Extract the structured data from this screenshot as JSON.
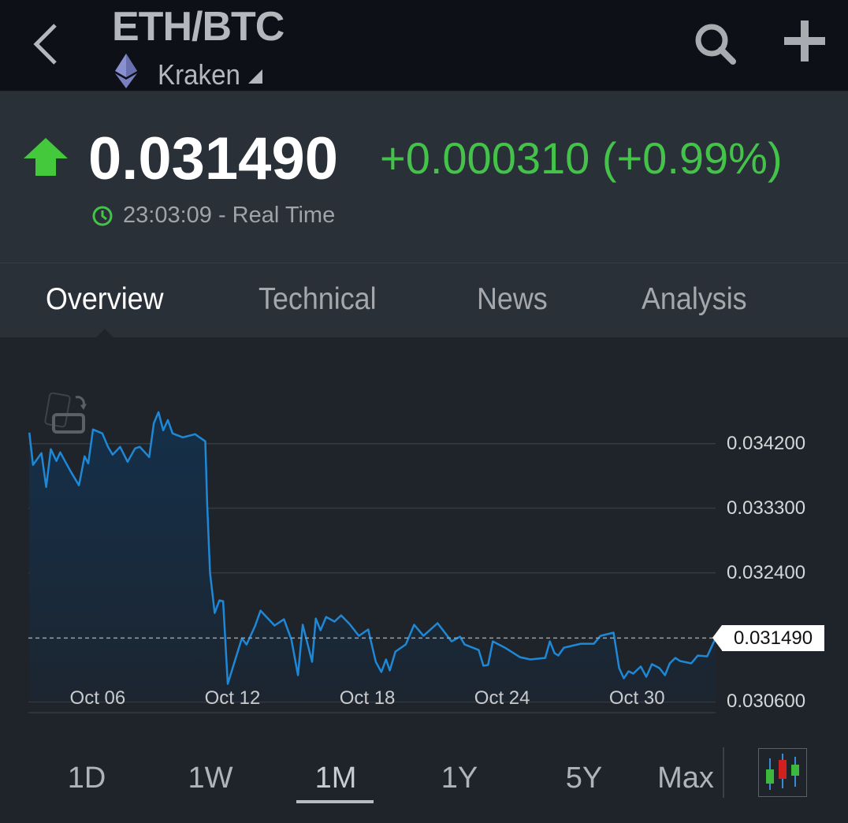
{
  "header": {
    "title": "ETH/BTC",
    "exchange": "Kraken",
    "icons": [
      "back-chevron-icon",
      "ethereum-icon",
      "dropdown-triangle-icon",
      "search-icon",
      "plus-icon"
    ]
  },
  "quote": {
    "price": "0.031490",
    "change": "+0.000310 (+0.99%)",
    "time": "23:03:09 - Real Time",
    "direction": "up",
    "up_color": "#44c24a"
  },
  "tabs": [
    {
      "label": "Overview",
      "active": true
    },
    {
      "label": "Technical"
    },
    {
      "label": "News"
    },
    {
      "label": "Analysis"
    }
  ],
  "ranges": [
    {
      "label": "1D"
    },
    {
      "label": "1W"
    },
    {
      "label": "1M",
      "active": true
    },
    {
      "label": "1Y"
    },
    {
      "label": "5Y"
    },
    {
      "label": "Max"
    }
  ],
  "chart_data": {
    "type": "area",
    "line_color": "#1e88d6",
    "grid": true,
    "current_value_label": "0.031490",
    "current_value": 0.03149,
    "xlim": [
      "Oct 02 22:00",
      "Nov 02 12:00"
    ],
    "ylim": [
      0.03045,
      0.035
    ],
    "x_ticks": [
      "Oct 06",
      "Oct 12",
      "Oct 18",
      "Oct 24",
      "Oct 30"
    ],
    "y_ticks": [
      {
        "label": "0.034200",
        "value": 0.0342
      },
      {
        "label": "0.033300",
        "value": 0.0333
      },
      {
        "label": "0.032400",
        "value": 0.0324
      },
      {
        "label": "0.030600",
        "value": 0.0306
      }
    ],
    "points": [
      [
        "Oct 02 23:00",
        0.034354
      ],
      [
        "Oct 03 03:00",
        0.033904
      ],
      [
        "Oct 03 12:00",
        0.034068
      ],
      [
        "Oct 03 17:00",
        0.033596
      ],
      [
        "Oct 03 22:00",
        0.034123
      ],
      [
        "Oct 04 04:00",
        0.033958
      ],
      [
        "Oct 04 08:00",
        0.034079
      ],
      [
        "Oct 04 19:00",
        0.033816
      ],
      [
        "Oct 05 04:00",
        0.033618
      ],
      [
        "Oct 05 10:00",
        0.034024
      ],
      [
        "Oct 05 14:00",
        0.033925
      ],
      [
        "Oct 05 19:00",
        0.034398
      ],
      [
        "Oct 06 05:00",
        0.034343
      ],
      [
        "Oct 06 11:00",
        0.034156
      ],
      [
        "Oct 06 16:00",
        0.034046
      ],
      [
        "Oct 07 00:00",
        0.034156
      ],
      [
        "Oct 07 08:00",
        0.033947
      ],
      [
        "Oct 07 16:00",
        0.034134
      ],
      [
        "Oct 07 21:00",
        0.034156
      ],
      [
        "Oct 08 07:00",
        0.034013
      ],
      [
        "Oct 08 12:00",
        0.034485
      ],
      [
        "Oct 08 17:00",
        0.034639
      ],
      [
        "Oct 08 22:00",
        0.034387
      ],
      [
        "Oct 09 03:00",
        0.034529
      ],
      [
        "Oct 09 08:00",
        0.034343
      ],
      [
        "Oct 09 19:00",
        0.034288
      ],
      [
        "Oct 10 08:00",
        0.034332
      ],
      [
        "Oct 10 19:00",
        0.034233
      ],
      [
        "Oct 10 21:00",
        0.033355
      ],
      [
        "Oct 11 00:00",
        0.0324
      ],
      [
        "Oct 11 05:00",
        0.031839
      ],
      [
        "Oct 11 10:00",
        0.032015
      ],
      [
        "Oct 11 14:00",
        0.032004
      ],
      [
        "Oct 11 19:00",
        0.030851
      ],
      [
        "Oct 12 10:00",
        0.031488
      ],
      [
        "Oct 12 15:00",
        0.0314
      ],
      [
        "Oct 13 00:00",
        0.031653
      ],
      [
        "Oct 13 06:00",
        0.031872
      ],
      [
        "Oct 13 21:00",
        0.031664
      ],
      [
        "Oct 14 07:00",
        0.031751
      ],
      [
        "Oct 14 15:00",
        0.031466
      ],
      [
        "Oct 14 22:00",
        0.030972
      ],
      [
        "Oct 15 03:00",
        0.031675
      ],
      [
        "Oct 15 13:00",
        0.031159
      ],
      [
        "Oct 15 17:00",
        0.031762
      ],
      [
        "Oct 15 22:00",
        0.031598
      ],
      [
        "Oct 16 04:00",
        0.031784
      ],
      [
        "Oct 16 13:00",
        0.031719
      ],
      [
        "Oct 16 20:00",
        0.031806
      ],
      [
        "Oct 17 05:00",
        0.031686
      ],
      [
        "Oct 17 15:00",
        0.031521
      ],
      [
        "Oct 18 01:00",
        0.031609
      ],
      [
        "Oct 18 09:00",
        0.031159
      ],
      [
        "Oct 18 15:00",
        0.031016
      ],
      [
        "Oct 18 20:00",
        0.031192
      ],
      [
        "Oct 19 00:00",
        0.031038
      ],
      [
        "Oct 19 06:00",
        0.031301
      ],
      [
        "Oct 19 17:00",
        0.0314
      ],
      [
        "Oct 20 02:00",
        0.031675
      ],
      [
        "Oct 20 12:00",
        0.031521
      ],
      [
        "Oct 21 03:00",
        0.031697
      ],
      [
        "Oct 21 18:00",
        0.031444
      ],
      [
        "Oct 22 03:00",
        0.03151
      ],
      [
        "Oct 22 08:00",
        0.0314
      ],
      [
        "Oct 22 23:00",
        0.031323
      ],
      [
        "Oct 23 04:00",
        0.031104
      ],
      [
        "Oct 23 09:00",
        0.031115
      ],
      [
        "Oct 23 14:00",
        0.031444
      ],
      [
        "Oct 24 03:00",
        0.031356
      ],
      [
        "Oct 24 19:00",
        0.031224
      ],
      [
        "Oct 25 06:00",
        0.031192
      ],
      [
        "Oct 25 22:00",
        0.031213
      ],
      [
        "Oct 26 03:00",
        0.031444
      ],
      [
        "Oct 26 08:00",
        0.031279
      ],
      [
        "Oct 26 12:00",
        0.031246
      ],
      [
        "Oct 26 18:00",
        0.031356
      ],
      [
        "Oct 27 12:00",
        0.031411
      ],
      [
        "Oct 28 02:00",
        0.031411
      ],
      [
        "Oct 28 09:00",
        0.031521
      ],
      [
        "Oct 28 23:00",
        0.031565
      ],
      [
        "Oct 29 05:00",
        0.031071
      ],
      [
        "Oct 29 10:00",
        0.030928
      ],
      [
        "Oct 29 15:00",
        0.031027
      ],
      [
        "Oct 29 20:00",
        0.030994
      ],
      [
        "Oct 30 04:00",
        0.031093
      ],
      [
        "Oct 30 10:00",
        0.03095
      ],
      [
        "Oct 30 16:00",
        0.031126
      ],
      [
        "Oct 31 00:00",
        0.031071
      ],
      [
        "Oct 31 06:00",
        0.030972
      ],
      [
        "Oct 31 11:00",
        0.031137
      ],
      [
        "Oct 31 17:00",
        0.031213
      ],
      [
        "Oct 31 22:00",
        0.03117
      ],
      [
        "Nov 01 10:00",
        0.031137
      ],
      [
        "Nov 01 17:00",
        0.031246
      ],
      [
        "Nov 02 03:00",
        0.031235
      ],
      [
        "Nov 02 12:00",
        0.03149
      ]
    ]
  }
}
